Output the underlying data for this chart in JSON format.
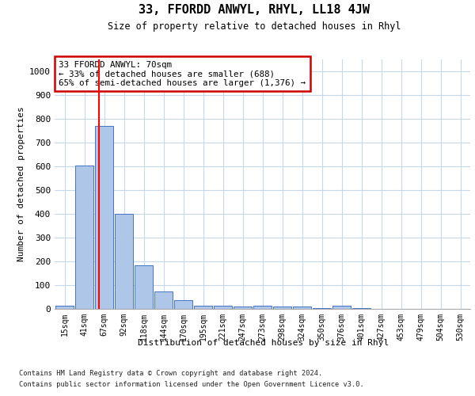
{
  "title": "33, FFORDD ANWYL, RHYL, LL18 4JW",
  "subtitle": "Size of property relative to detached houses in Rhyl",
  "xlabel": "Distribution of detached houses by size in Rhyl",
  "ylabel": "Number of detached properties",
  "bar_labels": [
    "15sqm",
    "41sqm",
    "67sqm",
    "92sqm",
    "118sqm",
    "144sqm",
    "170sqm",
    "195sqm",
    "221sqm",
    "247sqm",
    "273sqm",
    "298sqm",
    "324sqm",
    "350sqm",
    "376sqm",
    "401sqm",
    "427sqm",
    "453sqm",
    "479sqm",
    "504sqm",
    "530sqm"
  ],
  "bar_values": [
    15,
    605,
    770,
    400,
    185,
    75,
    38,
    15,
    13,
    10,
    13,
    10,
    10,
    5,
    13,
    5,
    0,
    0,
    0,
    0,
    0
  ],
  "bar_color": "#aec6e8",
  "bar_edge_color": "#4472c4",
  "ylim": [
    0,
    1050
  ],
  "yticks": [
    0,
    100,
    200,
    300,
    400,
    500,
    600,
    700,
    800,
    900,
    1000
  ],
  "red_line_x": 1.72,
  "annotation_text": "33 FFORDD ANWYL: 70sqm\n← 33% of detached houses are smaller (688)\n65% of semi-detached houses are larger (1,376) →",
  "annotation_box_color": "#ffffff",
  "annotation_box_edge_color": "#cc0000",
  "footer_line1": "Contains HM Land Registry data © Crown copyright and database right 2024.",
  "footer_line2": "Contains public sector information licensed under the Open Government Licence v3.0.",
  "background_color": "#ffffff",
  "grid_color": "#c8d8ec"
}
